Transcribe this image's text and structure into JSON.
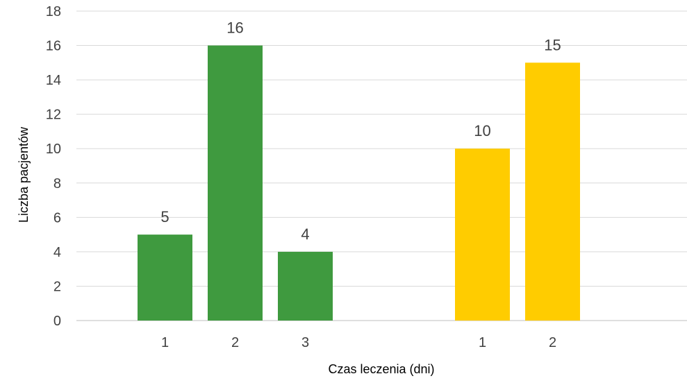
{
  "chart_data": {
    "type": "bar",
    "xlabel": "Czas leczenia (dni)",
    "ylabel": "Liczba pacjentów",
    "ylim": [
      0,
      18
    ],
    "yticks": [
      0,
      2,
      4,
      6,
      8,
      10,
      12,
      14,
      16,
      18
    ],
    "grid": true,
    "groups": [
      {
        "color": "#3f9a3f",
        "categories": [
          "1",
          "2",
          "3"
        ],
        "values": [
          5,
          16,
          4
        ]
      },
      {
        "color": "#ffcc00",
        "categories": [
          "1",
          "2"
        ],
        "values": [
          10,
          15
        ]
      }
    ]
  }
}
